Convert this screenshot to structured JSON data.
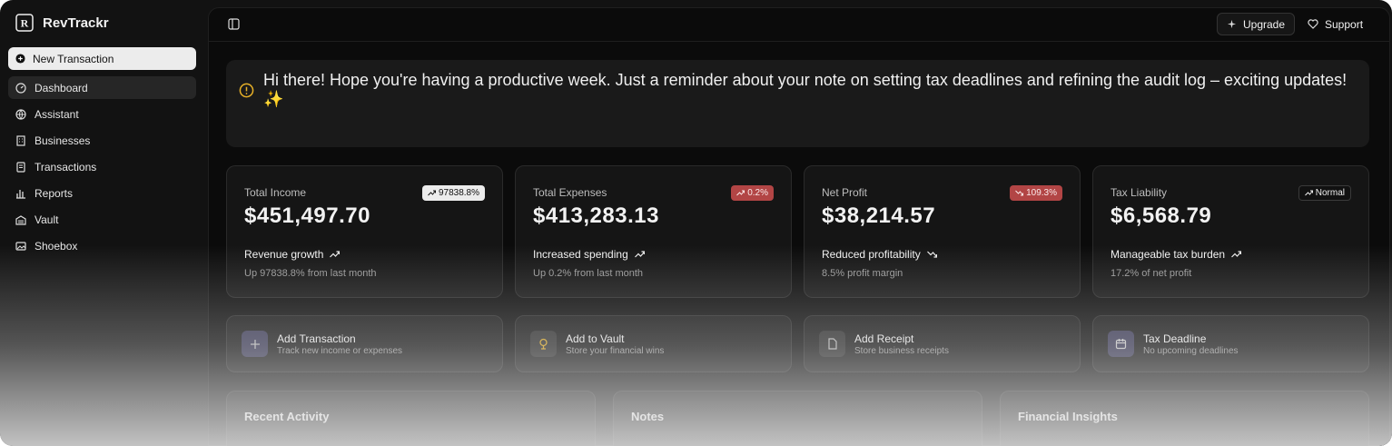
{
  "app": {
    "name": "RevTrackr"
  },
  "sidebar": {
    "primary_action": "New Transaction",
    "nav": [
      "Dashboard",
      "Assistant",
      "Businesses",
      "Transactions",
      "Reports",
      "Vault",
      "Shoebox"
    ]
  },
  "header": {
    "upgrade": "Upgrade",
    "support": "Support"
  },
  "banner": {
    "message": "Hi there! Hope you're having a productive week. Just a reminder about your note on setting tax deadlines and refining the audit log – exciting updates! ✨"
  },
  "stats": [
    {
      "label": "Total Income",
      "badge": "97838.8%",
      "value": "$451,497.70",
      "trend": "Revenue growth",
      "detail": "Up 97838.8% from last month"
    },
    {
      "label": "Total Expenses",
      "badge": "0.2%",
      "value": "$413,283.13",
      "trend": "Increased spending",
      "detail": "Up 0.2% from last month"
    },
    {
      "label": "Net Profit",
      "badge": "109.3%",
      "value": "$38,214.57",
      "trend": "Reduced profitability",
      "detail": "8.5% profit margin"
    },
    {
      "label": "Tax Liability",
      "badge": "Normal",
      "value": "$6,568.79",
      "trend": "Manageable tax burden",
      "detail": "17.2% of net profit"
    }
  ],
  "actions": [
    {
      "title": "Add Transaction",
      "subtitle": "Track new income or expenses"
    },
    {
      "title": "Add to Vault",
      "subtitle": "Store your financial wins"
    },
    {
      "title": "Add Receipt",
      "subtitle": "Store business receipts"
    },
    {
      "title": "Tax Deadline",
      "subtitle": "No upcoming deadlines"
    }
  ],
  "panels": [
    "Recent Activity",
    "Notes",
    "Financial Insights"
  ]
}
